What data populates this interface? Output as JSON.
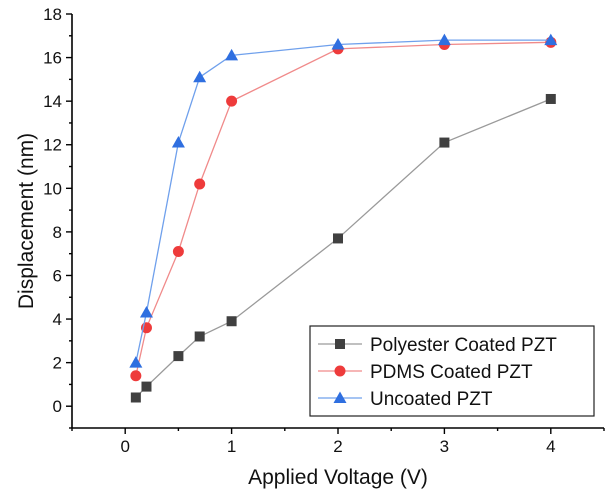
{
  "chart_data": {
    "type": "line",
    "title": "",
    "xlabel": "Applied Voltage (V)",
    "ylabel": "Displacement (nm)",
    "xlim": [
      -0.5,
      4.5
    ],
    "ylim": [
      -1,
      18
    ],
    "xticks": [
      0,
      1,
      2,
      3,
      4
    ],
    "yticks": [
      0,
      2,
      4,
      6,
      8,
      10,
      12,
      14,
      16,
      18
    ],
    "grid": false,
    "legend_position": "bottom-right",
    "series": [
      {
        "name": "Polyester Coated PZT",
        "marker": "square",
        "color": "#404040",
        "line_color": "#9a9a9a",
        "x": [
          0.1,
          0.2,
          0.5,
          0.7,
          1,
          2,
          3,
          4
        ],
        "y": [
          0.4,
          0.9,
          2.3,
          3.2,
          3.9,
          7.7,
          12.1,
          14.1
        ]
      },
      {
        "name": "PDMS Coated PZT",
        "marker": "circle",
        "color": "#ee3b3b",
        "line_color": "#f08a8a",
        "x": [
          0.1,
          0.2,
          0.5,
          0.7,
          1,
          2,
          3,
          4
        ],
        "y": [
          1.4,
          3.6,
          7.1,
          10.2,
          14.0,
          16.4,
          16.6,
          16.7
        ]
      },
      {
        "name": "Uncoated PZT",
        "marker": "triangle",
        "color": "#2f6fe0",
        "line_color": "#6fa0ec",
        "x": [
          0.1,
          0.2,
          0.5,
          0.7,
          1,
          2,
          3,
          4
        ],
        "y": [
          2.0,
          4.3,
          12.1,
          15.1,
          16.1,
          16.6,
          16.8,
          16.8
        ]
      }
    ]
  }
}
